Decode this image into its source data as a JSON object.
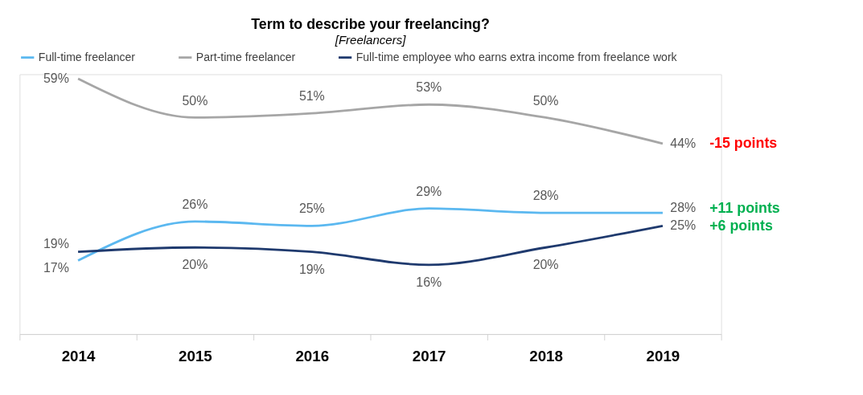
{
  "chart_data": {
    "type": "line",
    "title": "Term to describe your freelancing?",
    "subtitle": "[Freelancers]",
    "categories": [
      "2014",
      "2015",
      "2016",
      "2017",
      "2018",
      "2019"
    ],
    "series": [
      {
        "name": "Full-time freelancer",
        "color": "#5bb8f0",
        "values": [
          17,
          26,
          25,
          29,
          28,
          28
        ],
        "value_labels": [
          "17%",
          "26%",
          "25%",
          "29%",
          "28%",
          "28%"
        ]
      },
      {
        "name": "Part-time freelancer",
        "color": "#a6a6a6",
        "values": [
          59,
          50,
          51,
          53,
          50,
          44
        ],
        "value_labels": [
          "59%",
          "50%",
          "51%",
          "53%",
          "50%",
          "44%"
        ]
      },
      {
        "name": "Full-time employee who earns extra income from freelance work",
        "color": "#1f3a6e",
        "values": [
          19,
          20,
          19,
          16,
          20,
          25
        ],
        "value_labels": [
          "19%",
          "20%",
          "19%",
          "16%",
          "20%",
          "25%"
        ]
      }
    ],
    "annotations": [
      "-15 points",
      "+11 points",
      "+6 points"
    ],
    "legend": "top left",
    "grid": false,
    "marker": "none",
    "line_style": "solid",
    "tick_labels": "x"
  }
}
